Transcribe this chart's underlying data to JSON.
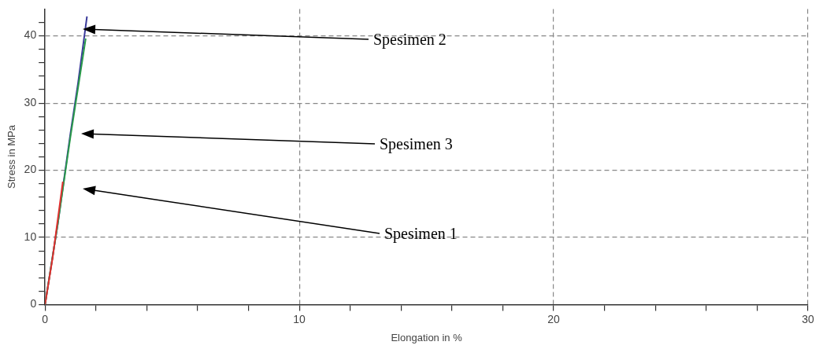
{
  "chart_data": {
    "type": "line",
    "xlabel": "Elongation in %",
    "ylabel": "Stress in MPa",
    "xlim": [
      0,
      30
    ],
    "ylim": [
      0,
      44
    ],
    "xticks": [
      0,
      {
        "value": 2,
        "label": null
      },
      {
        "value": 4,
        "label": null
      },
      {
        "value": 6,
        "label": null
      },
      {
        "value": 8,
        "label": null
      },
      10,
      {
        "value": 12,
        "label": null
      },
      {
        "value": 14,
        "label": null
      },
      {
        "value": 16,
        "label": null
      },
      {
        "value": 18,
        "label": null
      },
      20,
      {
        "value": 22,
        "label": null
      },
      {
        "value": 24,
        "label": null
      },
      {
        "value": 26,
        "label": null
      },
      {
        "value": 28,
        "label": null
      },
      30
    ],
    "yticks": [
      0,
      {
        "value": 2,
        "label": null
      },
      {
        "value": 4,
        "label": null
      },
      {
        "value": 6,
        "label": null
      },
      {
        "value": 8,
        "label": null
      },
      10,
      {
        "value": 12,
        "label": null
      },
      {
        "value": 14,
        "label": null
      },
      {
        "value": 16,
        "label": null
      },
      {
        "value": 18,
        "label": null
      },
      20,
      {
        "value": 22,
        "label": null
      },
      {
        "value": 24,
        "label": null
      },
      {
        "value": 26,
        "label": null
      },
      {
        "value": 28,
        "label": null
      },
      30,
      {
        "value": 32,
        "label": null
      },
      {
        "value": 34,
        "label": null
      },
      {
        "value": 36,
        "label": null
      },
      {
        "value": 38,
        "label": null
      },
      40,
      {
        "value": 42,
        "label": null
      }
    ],
    "grid": true,
    "marker": "none",
    "line_style": "solid",
    "series": [
      {
        "color": "#e03030",
        "x": [
          0,
          0.3,
          0.7
        ],
        "values": [
          0,
          7,
          18.3
        ]
      },
      {
        "color": "#2a9a4a",
        "x": [
          0,
          0.5,
          1,
          1.6
        ],
        "values": [
          0,
          12,
          25,
          39.6
        ]
      },
      {
        "color": "#3a3a9a",
        "x": [
          0,
          0.5,
          1,
          1.3,
          1.65
        ],
        "values": [
          0,
          12,
          25.5,
          33,
          42.9
        ]
      }
    ],
    "annotations": [
      "Spesimen 2",
      "Spesimen 3",
      "Spesimen 1"
    ]
  }
}
